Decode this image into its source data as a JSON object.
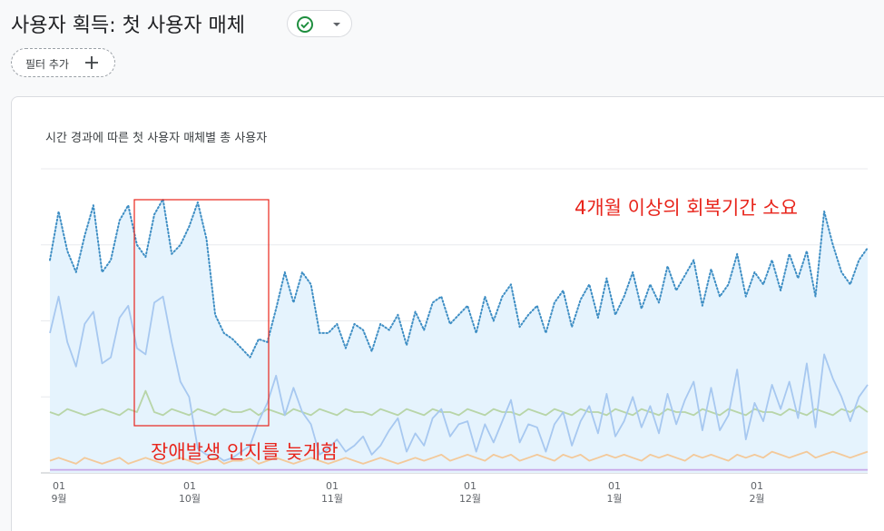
{
  "header": {
    "title": "사용자 획득: 첫 사용자 매체",
    "status_icon": "check-circle-icon",
    "dropdown_icon": "chevron-down-icon"
  },
  "filter": {
    "label": "필터 추가",
    "icon": "plus-icon"
  },
  "chart_data": {
    "type": "area",
    "title": "시간 경과에 따른 첫 사용자 매체별 총 사용자",
    "x_ticks": [
      {
        "day": "01",
        "month": "9월"
      },
      {
        "day": "01",
        "month": "10월"
      },
      {
        "day": "01",
        "month": "11월"
      },
      {
        "day": "01",
        "month": "12월"
      },
      {
        "day": "01",
        "month": "1월"
      },
      {
        "day": "01",
        "month": "2월"
      }
    ],
    "ylim": [
      0,
      100
    ],
    "grid": true,
    "series": [
      {
        "color": "#3e8ec4",
        "style": "dotted",
        "fill": "#e5f3fd",
        "values": [
          70,
          86,
          73,
          66,
          78,
          88,
          66,
          70,
          83,
          88,
          75,
          71,
          85,
          90,
          72,
          75,
          81,
          89,
          77,
          52,
          46,
          44,
          41,
          38,
          44,
          43,
          54,
          66,
          56,
          66,
          62,
          46,
          46,
          49,
          41,
          49,
          47,
          40,
          49,
          47,
          52,
          42,
          53,
          47,
          56,
          58,
          49,
          52,
          55,
          46,
          58,
          50,
          58,
          62,
          48,
          52,
          55,
          46,
          56,
          60,
          48,
          57,
          62,
          51,
          64,
          52,
          58,
          66,
          54,
          62,
          56,
          68,
          60,
          65,
          70,
          55,
          67,
          58,
          62,
          72,
          58,
          66,
          62,
          70,
          60,
          72,
          64,
          73,
          58,
          86,
          75,
          66,
          62,
          70,
          74
        ]
      },
      {
        "color": "#a7c8f0",
        "style": "solid",
        "values": [
          46,
          58,
          43,
          35,
          49,
          53,
          36,
          38,
          51,
          55,
          41,
          39,
          56,
          58,
          43,
          30,
          25,
          8,
          6,
          6,
          4,
          5,
          7,
          9,
          17,
          23,
          32,
          19,
          28,
          20,
          16,
          6,
          8,
          11,
          7,
          9,
          12,
          6,
          9,
          14,
          18,
          7,
          13,
          9,
          18,
          21,
          12,
          16,
          17,
          7,
          16,
          10,
          17,
          24,
          10,
          16,
          15,
          7,
          16,
          20,
          9,
          17,
          22,
          13,
          26,
          12,
          17,
          25,
          15,
          22,
          13,
          26,
          16,
          24,
          30,
          14,
          28,
          14,
          19,
          34,
          11,
          23,
          17,
          29,
          21,
          30,
          18,
          36,
          15,
          39,
          31,
          25,
          17,
          25,
          29
        ]
      },
      {
        "color": "#b8d5a8",
        "style": "solid",
        "values": [
          20,
          19,
          21,
          20,
          19,
          20,
          21,
          20,
          19,
          21,
          20,
          27,
          20,
          19,
          21,
          20,
          19,
          21,
          20,
          19,
          21,
          20,
          20,
          21,
          19,
          21,
          20,
          19,
          21,
          20,
          19,
          21,
          20,
          19,
          21,
          20,
          20,
          19,
          21,
          20,
          19,
          21,
          20,
          19,
          21,
          20,
          20,
          19,
          21,
          20,
          19,
          21,
          20,
          20,
          19,
          21,
          20,
          19,
          21,
          20,
          19,
          21,
          20,
          20,
          19,
          21,
          20,
          19,
          21,
          20,
          19,
          21,
          20,
          20,
          19,
          21,
          20,
          19,
          21,
          20,
          19,
          21,
          20,
          20,
          19,
          21,
          20,
          19,
          21,
          20,
          19,
          21,
          20,
          22,
          20
        ]
      },
      {
        "color": "#f3c99a",
        "style": "solid",
        "values": [
          4,
          5,
          4,
          3,
          5,
          4,
          3,
          4,
          5,
          3,
          4,
          5,
          4,
          3,
          4,
          5,
          4,
          3,
          4,
          5,
          3,
          4,
          4,
          5,
          3,
          4,
          5,
          4,
          3,
          4,
          5,
          4,
          3,
          4,
          5,
          4,
          3,
          4,
          5,
          4,
          3,
          4,
          5,
          4,
          5,
          6,
          4,
          5,
          6,
          5,
          4,
          6,
          5,
          6,
          4,
          5,
          6,
          5,
          4,
          6,
          5,
          6,
          4,
          5,
          6,
          5,
          6,
          5,
          4,
          6,
          5,
          6,
          5,
          4,
          6,
          5,
          6,
          5,
          4,
          6,
          5,
          6,
          5,
          7,
          6,
          5,
          6,
          7,
          5,
          6,
          7,
          6,
          5,
          6,
          7
        ]
      },
      {
        "color": "#c7a7e8",
        "style": "solid",
        "values": [
          1,
          1,
          1,
          1,
          1,
          1,
          1,
          1,
          1,
          1,
          1,
          1,
          1,
          1,
          1,
          1,
          1,
          1,
          1,
          1,
          1,
          1,
          1,
          1,
          1,
          1,
          1,
          1,
          1,
          1,
          1,
          1,
          1,
          1,
          1,
          1,
          1,
          1,
          1,
          1,
          1,
          1,
          1,
          1,
          1,
          1,
          1,
          1,
          1,
          1,
          1,
          1,
          1,
          1,
          1,
          1,
          1,
          1,
          1,
          1,
          1,
          1,
          1,
          1,
          1,
          1,
          1,
          1,
          1,
          1,
          1,
          1,
          1,
          1,
          1,
          1,
          1,
          1,
          1,
          1,
          1,
          1,
          1,
          1,
          1,
          1,
          1,
          1,
          1,
          1,
          1,
          1,
          1,
          1,
          1
        ]
      }
    ],
    "annotations": [
      {
        "text": "4개월 이상의 회복기간 소요",
        "color": "#e8251c"
      },
      {
        "text": "장애발생 인지를 늦게함",
        "color": "#e8251c"
      }
    ]
  }
}
